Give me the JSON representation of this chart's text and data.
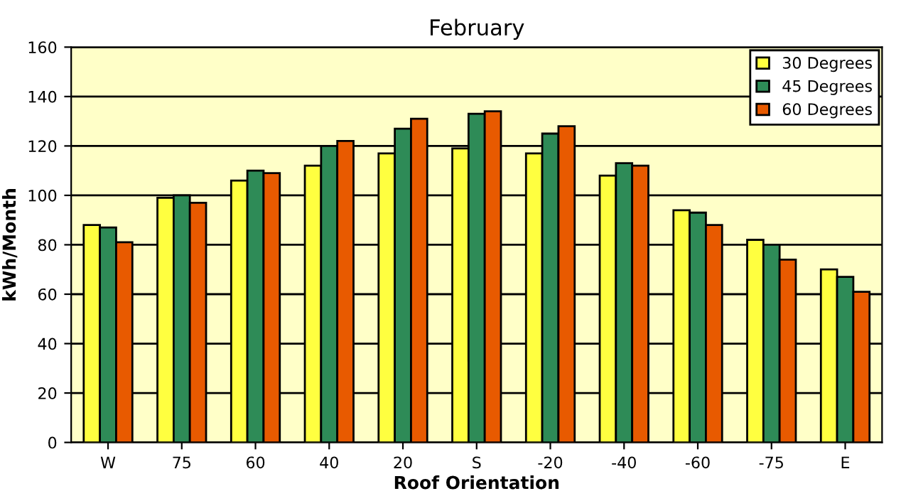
{
  "chart_data": {
    "type": "bar",
    "title": "February",
    "xlabel": "Roof Orientation",
    "ylabel": "kWh/Month",
    "categories": [
      "W",
      "75",
      "60",
      "40",
      "20",
      "S",
      "-20",
      "-40",
      "-60",
      "-75",
      "E"
    ],
    "series": [
      {
        "name": "30 Degrees",
        "color": "#ffff40",
        "values": [
          88,
          99,
          106,
          112,
          117,
          119,
          117,
          108,
          94,
          82,
          70
        ]
      },
      {
        "name": "45 Degrees",
        "color": "#2e8b57",
        "values": [
          87,
          100,
          110,
          120,
          127,
          133,
          125,
          113,
          93,
          80,
          67
        ]
      },
      {
        "name": "60 Degrees",
        "color": "#e85a00",
        "values": [
          81,
          97,
          109,
          122,
          131,
          134,
          128,
          112,
          88,
          74,
          61
        ]
      }
    ],
    "ylim": [
      0,
      160
    ],
    "yticks": [
      0,
      20,
      40,
      60,
      80,
      100,
      120,
      140,
      160
    ],
    "grid": "y",
    "legend": "top right"
  }
}
